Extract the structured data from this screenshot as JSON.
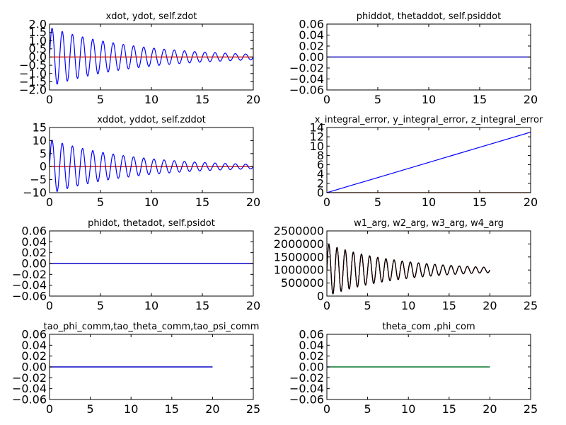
{
  "figure": {
    "background": "#ffffff"
  },
  "chart_data": [
    {
      "id": "xdot",
      "type": "line",
      "title": "xdot, ydot, self.zdot",
      "xlim": [
        0,
        20
      ],
      "ylim": [
        -2.0,
        2.0
      ],
      "xticks": [
        0,
        5,
        10,
        15,
        20
      ],
      "yticks": [
        -2.0,
        -1.5,
        -1.0,
        -0.5,
        0.0,
        0.5,
        1.0,
        1.5,
        2.0
      ],
      "yticklabels": [
        "−2.0",
        "−1.5",
        "−1.0",
        "−0.5",
        "0.0",
        "0.5",
        "1.0",
        "1.5",
        "2.0"
      ],
      "series": [
        {
          "color": "#0000ff",
          "kind": "damped-sine",
          "x_end": 20,
          "amplitude": 1.8,
          "decay": 0.118,
          "period": 1.0,
          "phase": 0.25,
          "offset": 0
        },
        {
          "color": "#008000",
          "kind": "constant",
          "value": 0.0,
          "x_end": 20
        },
        {
          "color": "#ff0000",
          "kind": "constant",
          "value": 0.0,
          "x_end": 20
        }
      ]
    },
    {
      "id": "phiddot",
      "type": "line",
      "title": "phiddot, thetaddot, self.psiddot",
      "xlim": [
        0,
        20
      ],
      "ylim": [
        -0.06,
        0.06
      ],
      "xticks": [
        0,
        5,
        10,
        15,
        20
      ],
      "yticks": [
        -0.06,
        -0.04,
        -0.02,
        0.0,
        0.02,
        0.04,
        0.06
      ],
      "yticklabels": [
        "−0.06",
        "−0.04",
        "−0.02",
        "0.00",
        "0.02",
        "0.04",
        "0.06"
      ],
      "series": [
        {
          "color": "#ff0000",
          "kind": "constant",
          "value": 0.0,
          "x_end": 20
        },
        {
          "color": "#008000",
          "kind": "constant",
          "value": 0.0,
          "x_end": 20
        },
        {
          "color": "#0000ff",
          "kind": "constant",
          "value": 0.0,
          "x_end": 20
        }
      ]
    },
    {
      "id": "xddot",
      "type": "line",
      "title": "xddot, yddot, self.zddot",
      "xlim": [
        0,
        20
      ],
      "ylim": [
        -10,
        15
      ],
      "xticks": [
        0,
        5,
        10,
        15,
        20
      ],
      "yticks": [
        -10,
        -5,
        0,
        5,
        10,
        15
      ],
      "yticklabels": [
        "−10",
        "−5",
        "0",
        "5",
        "10",
        "15"
      ],
      "series": [
        {
          "color": "#008000",
          "kind": "constant",
          "value": 0.0,
          "x_end": 20
        },
        {
          "color": "#ff0000",
          "kind": "constant",
          "value": 0.0,
          "x_end": 20
        },
        {
          "color": "#0000ff",
          "kind": "damped-sine",
          "x_end": 20,
          "amplitude": 10.5,
          "decay": 0.125,
          "period": 1.0,
          "phase": 0.25,
          "offset": 0
        }
      ]
    },
    {
      "id": "integral_error",
      "type": "line",
      "title": "x_integral_error, y_integral_error, z_integral_error",
      "xlim": [
        0,
        20
      ],
      "ylim": [
        0,
        14
      ],
      "xticks": [
        0,
        5,
        10,
        15,
        20
      ],
      "yticks": [
        0,
        2,
        4,
        6,
        8,
        10,
        12,
        14
      ],
      "yticklabels": [
        "0",
        "2",
        "4",
        "6",
        "8",
        "10",
        "12",
        "14"
      ],
      "series": [
        {
          "color": "#008000",
          "kind": "constant",
          "value": 0.0,
          "x_end": 20
        },
        {
          "color": "#ff0000",
          "kind": "constant",
          "value": 0.0,
          "x_end": 20
        },
        {
          "color": "#0000ff",
          "kind": "points",
          "x": [
            0,
            5,
            10,
            15,
            20
          ],
          "y": [
            0,
            3.25,
            6.5,
            9.75,
            13.0
          ]
        }
      ]
    },
    {
      "id": "phidot",
      "type": "line",
      "title": "phidot, thetadot, self.psidot",
      "xlim": [
        0,
        20
      ],
      "ylim": [
        -0.06,
        0.06
      ],
      "xticks": [
        0,
        5,
        10,
        15,
        20
      ],
      "yticks": [
        -0.06,
        -0.04,
        -0.02,
        0.0,
        0.02,
        0.04,
        0.06
      ],
      "yticklabels": [
        "−0.06",
        "−0.04",
        "−0.02",
        "0.00",
        "0.02",
        "0.04",
        "0.06"
      ],
      "series": [
        {
          "color": "#ff0000",
          "kind": "constant",
          "value": 0.0,
          "x_end": 20
        },
        {
          "color": "#008000",
          "kind": "constant",
          "value": 0.0,
          "x_end": 20
        },
        {
          "color": "#0000ff",
          "kind": "constant",
          "value": 0.0,
          "x_end": 20
        }
      ]
    },
    {
      "id": "w_arg",
      "type": "line",
      "title": "w1_arg, w2_arg, w3_arg, w4_arg",
      "xlim": [
        0,
        25
      ],
      "ylim": [
        0,
        2500000
      ],
      "xticks": [
        0,
        5,
        10,
        15,
        20,
        25
      ],
      "yticks": [
        0,
        500000,
        1000000,
        1500000,
        2000000,
        2500000
      ],
      "yticklabels": [
        "0",
        "500000",
        "1000000",
        "1500000",
        "2000000",
        "2500000"
      ],
      "series": [
        {
          "color": "#0000ff",
          "kind": "damped-sine",
          "x_end": 20,
          "amplitude": 1000000,
          "decay": 0.115,
          "period": 1.0,
          "phase": 0.25,
          "offset": 1000000
        },
        {
          "color": "#008000",
          "kind": "damped-sine",
          "x_end": 20,
          "amplitude": 1000000,
          "decay": 0.115,
          "period": 1.0,
          "phase": 0.25,
          "offset": 1000000
        },
        {
          "color": "#ff0000",
          "kind": "damped-sine",
          "x_end": 20,
          "amplitude": 1000000,
          "decay": 0.115,
          "period": 1.0,
          "phase": 0.25,
          "offset": 1000000
        },
        {
          "color": "#000000",
          "kind": "damped-sine",
          "x_end": 20,
          "amplitude": 1000000,
          "decay": 0.115,
          "period": 1.0,
          "phase": 0.25,
          "offset": 1000000
        }
      ]
    },
    {
      "id": "tao",
      "type": "line",
      "title": "tao_phi_comm,tao_theta_comm,tao_psi_comm",
      "xlim": [
        0,
        25
      ],
      "ylim": [
        -0.06,
        0.06
      ],
      "xticks": [
        0,
        5,
        10,
        15,
        20,
        25
      ],
      "yticks": [
        -0.06,
        -0.04,
        -0.02,
        0.0,
        0.02,
        0.04,
        0.06
      ],
      "yticklabels": [
        "−0.06",
        "−0.04",
        "−0.02",
        "0.00",
        "0.02",
        "0.04",
        "0.06"
      ],
      "series": [
        {
          "color": "#ff0000",
          "kind": "constant",
          "value": 0.0,
          "x_end": 20
        },
        {
          "color": "#008000",
          "kind": "constant",
          "value": 0.0,
          "x_end": 20
        },
        {
          "color": "#0000ff",
          "kind": "constant",
          "value": 0.0,
          "x_end": 20
        }
      ]
    },
    {
      "id": "theta_com",
      "type": "line",
      "title": "theta_com ,phi_com",
      "xlim": [
        0,
        25
      ],
      "ylim": [
        -0.06,
        0.06
      ],
      "xticks": [
        0,
        5,
        10,
        15,
        20,
        25
      ],
      "yticks": [
        -0.06,
        -0.04,
        -0.02,
        0.0,
        0.02,
        0.04,
        0.06
      ],
      "yticklabels": [
        "−0.06",
        "−0.04",
        "−0.02",
        "0.00",
        "0.02",
        "0.04",
        "0.06"
      ],
      "series": [
        {
          "color": "#0000ff",
          "kind": "constant",
          "value": 0.0,
          "x_end": 20
        },
        {
          "color": "#008000",
          "kind": "constant",
          "value": 0.0,
          "x_end": 20
        }
      ]
    }
  ]
}
